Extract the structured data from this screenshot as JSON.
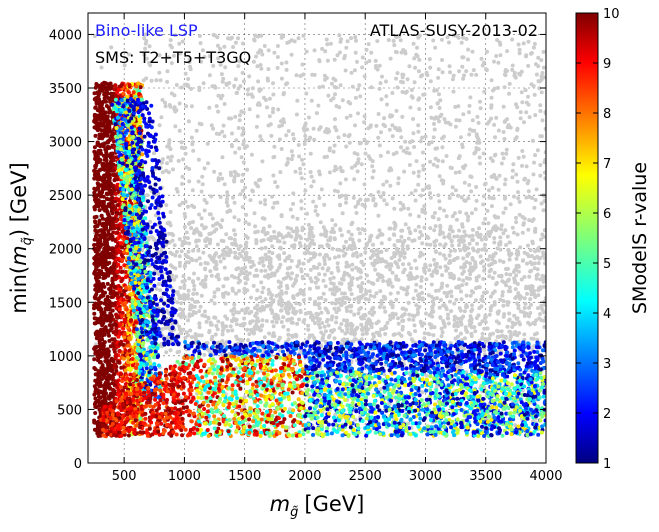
{
  "chart_data": {
    "type": "scatter",
    "title": "",
    "annotations": {
      "lsp": "Bino-like LSP",
      "sms": "SMS: T2+T5+T3GQ",
      "analysis": "ATLAS-SUSY-2013-02"
    },
    "xlabel_base": "m",
    "xlabel_sub": "g̃",
    "xlabel_unit": "[GeV]",
    "ylabel_prefix": "min(",
    "ylabel_base": "m",
    "ylabel_sub": "q̃",
    "ylabel_suffix": ") [GeV]",
    "xlim": [
      200,
      4000
    ],
    "ylim": [
      0,
      4200
    ],
    "xticks": [
      500,
      1000,
      1500,
      2000,
      2500,
      3000,
      3500,
      4000
    ],
    "yticks": [
      0,
      500,
      1000,
      1500,
      2000,
      2500,
      3000,
      3500,
      4000
    ],
    "grid": true,
    "colorbar": {
      "label": "SModelS r-value",
      "range": [
        1,
        10
      ],
      "ticks": [
        1,
        2,
        3,
        4,
        5,
        6,
        7,
        8,
        9,
        10
      ],
      "colormap": "jet"
    },
    "colors": {
      "excluded_gray": "#cccccc",
      "lsp_label": "#1f1fff",
      "text": "#000000"
    },
    "point_groups": [
      {
        "name": "not-excluded",
        "color": "#cccccc",
        "x_range": [
          250,
          4000
        ],
        "y_range": [
          300,
          4000
        ],
        "density": "high"
      },
      {
        "name": "excluded-low-gluino",
        "x_range": [
          250,
          800
        ],
        "y_range": [
          250,
          3550
        ],
        "r_range": [
          1,
          10
        ],
        "r_typical": 10
      },
      {
        "name": "excluded-low-squark",
        "x_range": [
          300,
          4000
        ],
        "y_range": [
          250,
          1150
        ],
        "r_range": [
          1,
          10
        ]
      }
    ]
  }
}
